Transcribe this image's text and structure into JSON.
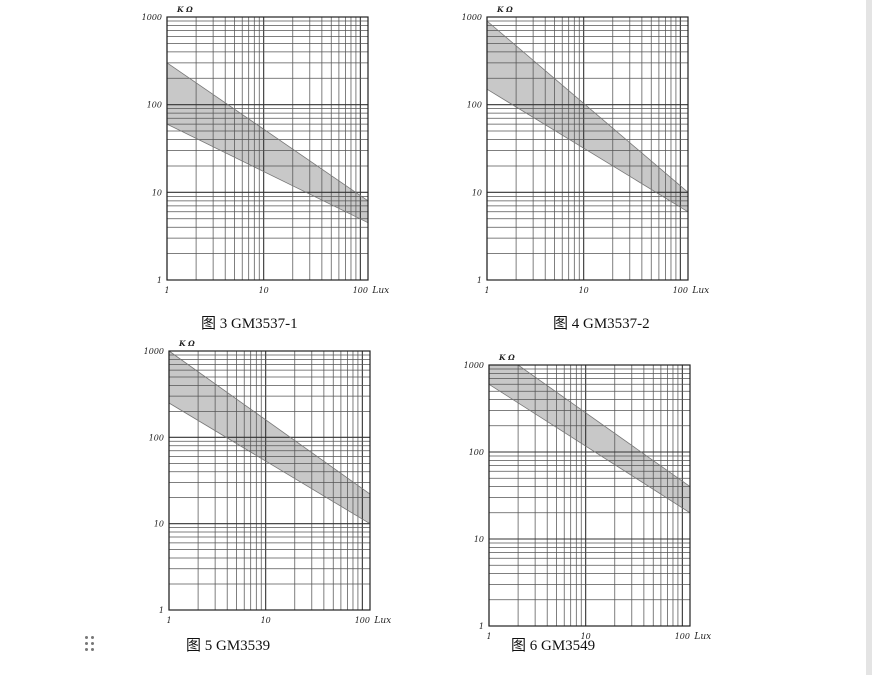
{
  "page": {
    "captions": [
      "图 3 GM3537-1",
      "图 4 GM3537-2",
      "图 5 GM3539",
      "图 6 GM3549"
    ]
  },
  "chart_data": [
    {
      "type": "area",
      "caption": "图 3 GM3537-1",
      "xlabel": "Lux",
      "ylabel": "K Ω",
      "xscale": "log",
      "yscale": "log",
      "xlim": [
        1,
        120
      ],
      "ylim": [
        1,
        1000
      ],
      "xticks": [
        "1",
        "10",
        "100"
      ],
      "yticks": [
        "1",
        "10",
        "100",
        "1000"
      ],
      "grid": true,
      "band_fill": "#c8c8c8",
      "series": [
        {
          "x": [
            1,
            120
          ],
          "values": [
            300,
            8
          ]
        },
        {
          "x": [
            1,
            120
          ],
          "values": [
            60,
            4.5
          ]
        }
      ]
    },
    {
      "type": "area",
      "caption": "图 4 GM3537-2",
      "xlabel": "Lux",
      "ylabel": "K Ω",
      "xscale": "log",
      "yscale": "log",
      "xlim": [
        1,
        120
      ],
      "ylim": [
        1,
        1000
      ],
      "xticks": [
        "1",
        "10",
        "100"
      ],
      "yticks": [
        "1",
        "10",
        "100",
        "1000"
      ],
      "grid": true,
      "band_fill": "#c8c8c8",
      "series": [
        {
          "x": [
            1,
            120
          ],
          "values": [
            900,
            10
          ]
        },
        {
          "x": [
            1,
            120
          ],
          "values": [
            150,
            6
          ]
        }
      ]
    },
    {
      "type": "area",
      "caption": "图 5 GM3539",
      "xlabel": "Lux",
      "ylabel": "K Ω",
      "xscale": "log",
      "yscale": "log",
      "xlim": [
        1,
        120
      ],
      "ylim": [
        1,
        1000
      ],
      "xticks": [
        "1",
        "10",
        "100"
      ],
      "yticks": [
        "1",
        "10",
        "100",
        "1000"
      ],
      "grid": true,
      "band_fill": "#c8c8c8",
      "series": [
        {
          "x": [
            1,
            120
          ],
          "values": [
            1000,
            22
          ]
        },
        {
          "x": [
            1,
            120
          ],
          "values": [
            250,
            10
          ]
        }
      ]
    },
    {
      "type": "area",
      "caption": "图 6 GM3549",
      "xlabel": "Lux",
      "ylabel": "K Ω",
      "xscale": "log",
      "yscale": "log",
      "xlim": [
        1,
        120
      ],
      "ylim": [
        1,
        1000
      ],
      "xticks": [
        "1",
        "10",
        "100"
      ],
      "yticks": [
        "1",
        "10",
        "100",
        "1000"
      ],
      "grid": true,
      "band_fill": "#c8c8c8",
      "series": [
        {
          "x": [
            1,
            2,
            120
          ],
          "values": [
            1000,
            1000,
            40
          ]
        },
        {
          "x": [
            1,
            120
          ],
          "values": [
            600,
            20
          ]
        }
      ]
    }
  ]
}
